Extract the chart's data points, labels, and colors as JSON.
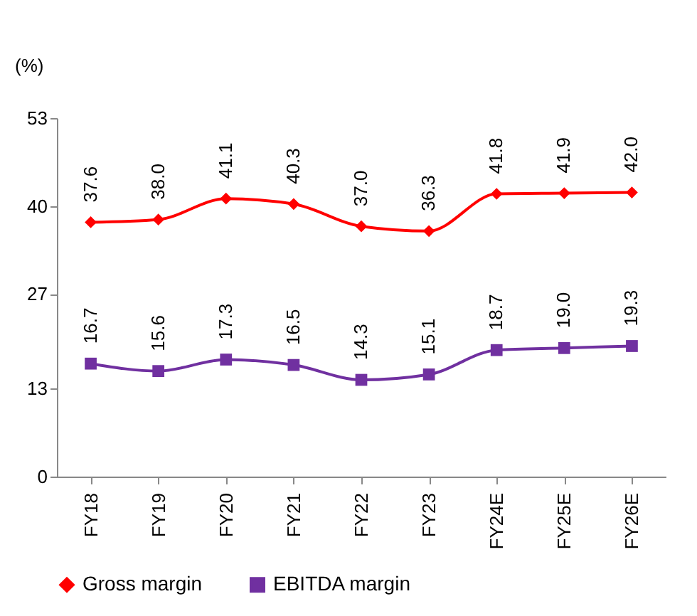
{
  "chart_data": {
    "type": "line",
    "ylabel": "(%)",
    "categories": [
      "FY18",
      "FY19",
      "FY20",
      "FY21",
      "FY22",
      "FY23",
      "FY24E",
      "FY25E",
      "FY26E"
    ],
    "series": [
      {
        "name": "Gross margin",
        "color": "#ff0000",
        "marker": "diamond",
        "values": [
          37.6,
          38.0,
          41.1,
          40.3,
          37.0,
          36.3,
          41.8,
          41.9,
          42.0
        ],
        "value_labels": [
          "37.6",
          "38.0",
          "41.1",
          "40.3",
          "37.0",
          "36.3",
          "41.8",
          "41.9",
          "42.0"
        ]
      },
      {
        "name": "EBITDA margin",
        "color": "#7030a0",
        "marker": "square",
        "values": [
          16.7,
          15.6,
          17.3,
          16.5,
          14.3,
          15.1,
          18.7,
          19.0,
          19.3
        ],
        "value_labels": [
          "16.7",
          "15.6",
          "17.3",
          "16.5",
          "14.3",
          "15.1",
          "18.7",
          "19.0",
          "19.3"
        ]
      }
    ],
    "ylim": [
      0,
      53
    ],
    "yticks": [
      0,
      13,
      27,
      40,
      53
    ],
    "legend": "bottom"
  }
}
